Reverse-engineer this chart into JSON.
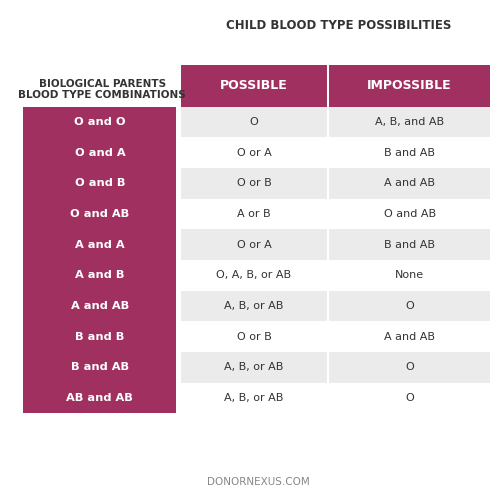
{
  "title": "CHILD BLOOD TYPE POSSIBILITIES",
  "col_header_left": "BIOLOGICAL PARENTS\nBLOOD TYPE COMBINATIONS",
  "col_header_possible": "POSSIBLE",
  "col_header_impossible": "IMPOSSIBLE",
  "rows": [
    {
      "parents": "O and O",
      "possible": "O",
      "impossible": "A, B, and AB"
    },
    {
      "parents": "O and A",
      "possible": "O or A",
      "impossible": "B and AB"
    },
    {
      "parents": "O and B",
      "possible": "O or B",
      "impossible": "A and AB"
    },
    {
      "parents": "O and AB",
      "possible": "A or B",
      "impossible": "O and AB"
    },
    {
      "parents": "A and A",
      "possible": "O or A",
      "impossible": "B and AB"
    },
    {
      "parents": "A and B",
      "possible": "O, A, B, or AB",
      "impossible": "None"
    },
    {
      "parents": "A and AB",
      "possible": "A, B, or AB",
      "impossible": "O"
    },
    {
      "parents": "B and B",
      "possible": "O or B",
      "impossible": "A and AB"
    },
    {
      "parents": "B and AB",
      "possible": "A, B, or AB",
      "impossible": "O"
    },
    {
      "parents": "AB and AB",
      "possible": "A, B, or AB",
      "impossible": "O"
    }
  ],
  "color_maroon": "#A03060",
  "color_header_text": "#FFFFFF",
  "color_row_shaded": "#EBEBEB",
  "color_row_white": "#FFFFFF",
  "color_left_col_bg": "#A03060",
  "color_left_col_text": "#FFFFFF",
  "color_title": "#333333",
  "color_footer": "#888888",
  "footer": "DONORNEXUS.COM",
  "background_color": "#FFFFFF"
}
